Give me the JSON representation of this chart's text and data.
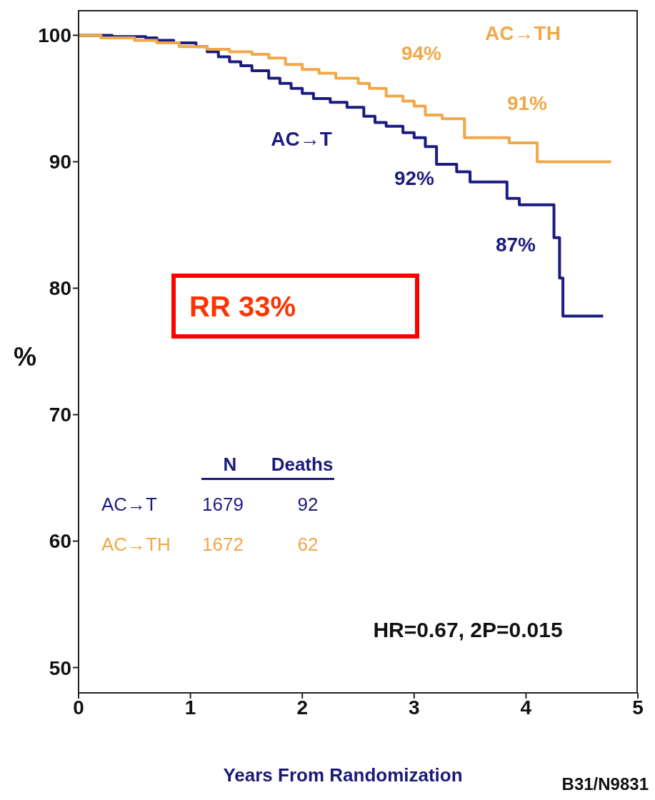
{
  "chart_data": {
    "type": "step",
    "xlabel": "Years From Randomization",
    "ylabel": "%",
    "xlim": [
      0,
      5
    ],
    "xticks": [
      0,
      1,
      2,
      3,
      4,
      5
    ],
    "ylim": [
      48,
      102
    ],
    "yticks": [
      50,
      60,
      70,
      80,
      90,
      100
    ],
    "line_style": "solid",
    "series": [
      {
        "name": "AC→T",
        "color": "#1c1c80",
        "x": [
          0,
          0.3,
          0.6,
          0.7,
          0.85,
          1.05,
          1.15,
          1.25,
          1.35,
          1.45,
          1.55,
          1.7,
          1.8,
          1.9,
          2.0,
          2.1,
          2.25,
          2.4,
          2.55,
          2.65,
          2.75,
          2.9,
          3.0,
          3.1,
          3.2,
          3.38,
          3.5,
          3.83,
          3.94,
          4.25,
          4.3,
          4.33,
          4.69
        ],
        "values": [
          100,
          99.9,
          99.8,
          99.6,
          99.4,
          99.1,
          98.7,
          98.3,
          97.9,
          97.6,
          97.2,
          96.6,
          96.2,
          95.8,
          95.4,
          95.0,
          94.7,
          94.3,
          93.6,
          93.1,
          92.8,
          92.3,
          91.9,
          91.2,
          89.8,
          89.2,
          88.4,
          87.1,
          86.6,
          84.0,
          80.8,
          77.8,
          77.8
        ]
      },
      {
        "name": "AC→TH",
        "color": "#f0a848",
        "x": [
          0,
          0.2,
          0.5,
          0.7,
          0.9,
          1.15,
          1.35,
          1.55,
          1.7,
          1.85,
          2.0,
          2.15,
          2.3,
          2.5,
          2.6,
          2.75,
          2.9,
          3.0,
          3.1,
          3.25,
          3.45,
          3.85,
          4.1,
          4.76
        ],
        "values": [
          100,
          99.8,
          99.6,
          99.4,
          99.1,
          98.9,
          98.7,
          98.5,
          98.2,
          97.7,
          97.3,
          97.0,
          96.6,
          96.2,
          95.8,
          95.2,
          94.8,
          94.4,
          93.7,
          93.4,
          91.9,
          91.5,
          90.0,
          90.0
        ]
      }
    ],
    "annotations": [
      "92%",
      "87%",
      "94%",
      "91%",
      "RR 33%",
      "N",
      "Deaths",
      "1679",
      "92",
      "1672",
      "62",
      "HR=0.67, 2P=0.015",
      "B31/N9831"
    ]
  }
}
